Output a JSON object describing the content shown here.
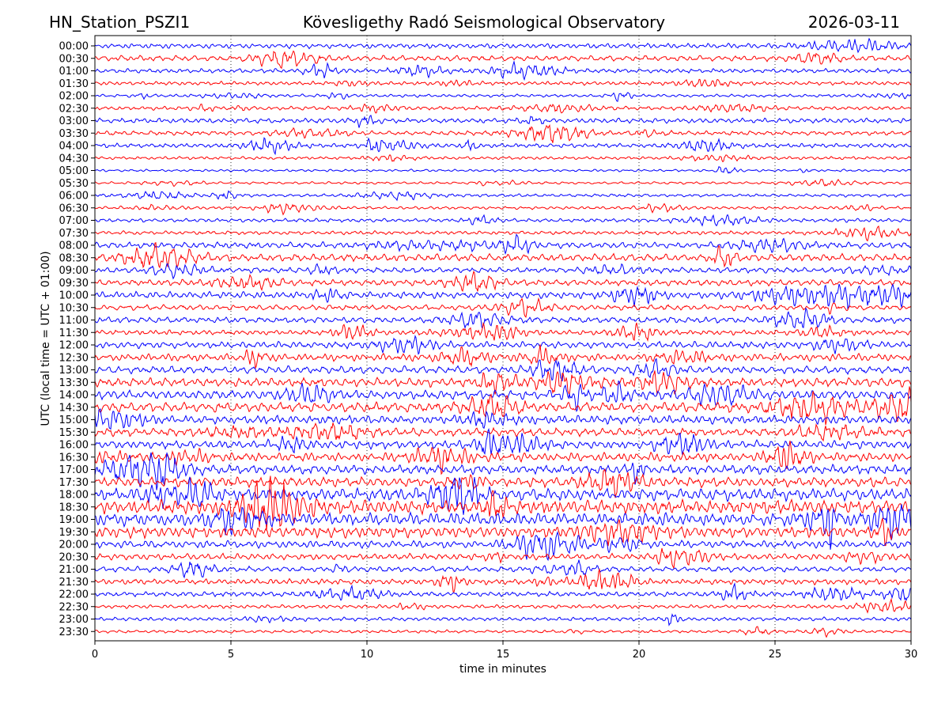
{
  "header": {
    "station": "HN_Station_PSZI1",
    "title": "Kövesligethy Radó Seismological Observatory",
    "date": "2026-03-11"
  },
  "chart_data": {
    "type": "line",
    "title": "Kövesligethy Radó Seismological Observatory",
    "xlabel": "time in minutes",
    "ylabel": "UTC (local time = UTC + 01:00)",
    "xlim": [
      0,
      30
    ],
    "xticks": [
      0,
      5,
      10,
      15,
      20,
      25,
      30
    ],
    "grid": "vertical dotted",
    "trace_colors": [
      "#0000ff",
      "#ff0000"
    ],
    "row_labels": [
      "00:00",
      "00:30",
      "01:00",
      "01:30",
      "02:00",
      "02:30",
      "03:00",
      "03:30",
      "04:00",
      "04:30",
      "05:00",
      "05:30",
      "06:00",
      "06:30",
      "07:00",
      "07:30",
      "08:00",
      "08:30",
      "09:00",
      "09:30",
      "10:00",
      "10:30",
      "11:00",
      "11:30",
      "12:00",
      "12:30",
      "13:00",
      "13:30",
      "14:00",
      "14:30",
      "15:00",
      "15:30",
      "16:00",
      "16:30",
      "17:00",
      "17:30",
      "18:00",
      "18:30",
      "19:00",
      "19:30",
      "20:00",
      "20:30",
      "21:00",
      "21:30",
      "22:00",
      "22:30",
      "23:00",
      "23:30"
    ],
    "row_amplitude": [
      0.8,
      0.9,
      0.7,
      0.6,
      0.5,
      0.6,
      0.8,
      0.7,
      0.7,
      0.5,
      0.4,
      0.4,
      0.5,
      0.5,
      0.6,
      0.6,
      1.0,
      1.2,
      0.9,
      1.0,
      1.1,
      0.9,
      1.0,
      0.8,
      1.1,
      1.2,
      1.2,
      1.4,
      1.5,
      1.6,
      1.4,
      1.3,
      1.3,
      1.4,
      1.5,
      1.6,
      2.0,
      2.2,
      2.1,
      1.8,
      1.2,
      1.0,
      0.9,
      0.9,
      0.8,
      0.6,
      0.6,
      0.5
    ]
  }
}
